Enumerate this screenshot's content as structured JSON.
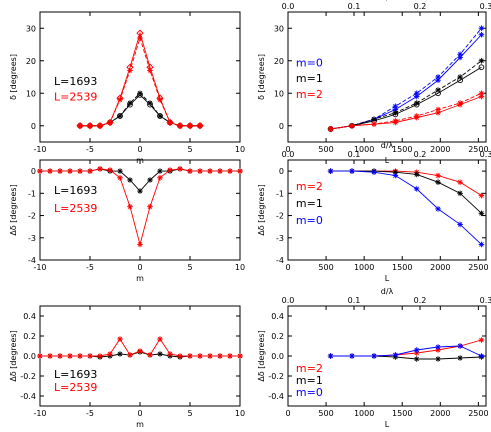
{
  "colors": {
    "black": "#000000",
    "red": "#ff0000",
    "blue": "#0000ff"
  },
  "chart_data": [
    {
      "type": "line",
      "panel": "top-left",
      "xlabel": "m",
      "ylabel": "δ [degrees]",
      "xlim": [
        -10,
        10
      ],
      "ylim": [
        -5,
        35
      ],
      "xticks": [
        -10,
        -5,
        0,
        5,
        10
      ],
      "yticks": [
        0,
        10,
        20,
        30
      ],
      "x": [
        -6,
        -5,
        -4,
        -3,
        -2,
        -1,
        0,
        1,
        2,
        3,
        4,
        5,
        6
      ],
      "series": [
        {
          "name": "L=1693",
          "color": "#000000",
          "marker": "star",
          "dashed": true,
          "values": [
            0,
            0,
            0,
            1,
            3,
            7,
            10,
            7,
            3,
            1,
            0,
            0,
            0
          ]
        },
        {
          "name": "L=1693",
          "color": "#000000",
          "marker": "circle",
          "dashed": false,
          "values": [
            0,
            0,
            0,
            1,
            3,
            6.5,
            9.5,
            6.5,
            3,
            1,
            0,
            0,
            0
          ]
        },
        {
          "name": "L=2539",
          "color": "#ff0000",
          "marker": "star",
          "dashed": true,
          "values": [
            0,
            0,
            0,
            1,
            8,
            17,
            27,
            17,
            8,
            1,
            0,
            0,
            0
          ]
        },
        {
          "name": "L=2539",
          "color": "#ff0000",
          "marker": "diamond",
          "dashed": false,
          "values": [
            0,
            0,
            0,
            1,
            8.5,
            18,
            28.5,
            18,
            8.5,
            1,
            0,
            0,
            0
          ]
        }
      ],
      "annotations": [
        {
          "text": "L=1693",
          "color": "#000000"
        },
        {
          "text": "L=2539",
          "color": "#ff0000"
        }
      ]
    },
    {
      "type": "line",
      "panel": "top-right",
      "xlabel": "L",
      "x2label": "d/λ",
      "ylabel": "δ [degrees]",
      "xlim": [
        0,
        2600
      ],
      "ylim": [
        -5,
        35
      ],
      "xticks": [
        0,
        500,
        1000,
        1500,
        2000,
        2500
      ],
      "x2ticks": [
        "0.0",
        "0.1",
        "0.2",
        "0.3"
      ],
      "yticks": [
        0,
        10,
        20,
        30
      ],
      "x": [
        560,
        840,
        1130,
        1410,
        1690,
        1970,
        2260,
        2540
      ],
      "series": [
        {
          "name": "m=0",
          "color": "#0000ff",
          "marker": "star",
          "dashed": true,
          "values": [
            -1,
            0,
            2,
            6,
            10,
            15,
            22,
            30
          ]
        },
        {
          "name": "m=0",
          "color": "#0000ff",
          "marker": "star",
          "dashed": false,
          "values": [
            -1,
            0,
            2,
            5,
            9,
            14,
            21,
            28
          ]
        },
        {
          "name": "m=1",
          "color": "#000000",
          "marker": "star",
          "dashed": true,
          "values": [
            -1,
            0,
            2,
            4,
            7,
            11,
            15,
            20
          ]
        },
        {
          "name": "m=1",
          "color": "#000000",
          "marker": "circle",
          "dashed": false,
          "values": [
            -1,
            0,
            1.5,
            3.5,
            6.5,
            10,
            14,
            18
          ]
        },
        {
          "name": "m=2",
          "color": "#ff0000",
          "marker": "star",
          "dashed": true,
          "values": [
            -1,
            0,
            0.5,
            1.5,
            3,
            5,
            7,
            10
          ]
        },
        {
          "name": "m=2",
          "color": "#ff0000",
          "marker": "star",
          "dashed": false,
          "values": [
            -1,
            0,
            0.5,
            1,
            2.5,
            4,
            6.5,
            9
          ]
        }
      ],
      "annotations": [
        {
          "text": "m=0",
          "color": "#0000ff"
        },
        {
          "text": "m=1",
          "color": "#000000"
        },
        {
          "text": "m=2",
          "color": "#ff0000"
        }
      ]
    },
    {
      "type": "line",
      "panel": "middle-left",
      "xlabel": "m",
      "ylabel": "Δδ [degrees]",
      "xlim": [
        -10,
        10
      ],
      "ylim": [
        -4,
        0.5
      ],
      "xticks": [
        -10,
        -5,
        0,
        5,
        10
      ],
      "yticks": [
        -4,
        -3,
        -2,
        -1,
        0
      ],
      "x": [
        -10,
        -9,
        -8,
        -7,
        -6,
        -5,
        -4,
        -3,
        -2,
        -1,
        0,
        1,
        2,
        3,
        4,
        5,
        6,
        7,
        8,
        9,
        10
      ],
      "series": [
        {
          "name": "L=1693",
          "color": "#000000",
          "marker": "star",
          "dashed": false,
          "values": [
            0,
            0,
            0,
            0,
            0,
            0,
            0.1,
            0,
            0,
            -0.4,
            -0.9,
            -0.4,
            0,
            0,
            0.1,
            0,
            0,
            0,
            0,
            0,
            0
          ]
        },
        {
          "name": "L=2539",
          "color": "#ff0000",
          "marker": "star",
          "dashed": false,
          "values": [
            0,
            0,
            0,
            0,
            0,
            0,
            0.1,
            0.05,
            -0.3,
            -1.6,
            -3.3,
            -1.6,
            -0.3,
            0.05,
            0.1,
            0,
            0,
            0,
            0,
            0,
            0
          ]
        }
      ],
      "annotations": [
        {
          "text": "L=1693",
          "color": "#000000"
        },
        {
          "text": "L=2539",
          "color": "#ff0000"
        }
      ]
    },
    {
      "type": "line",
      "panel": "middle-right",
      "xlabel": "L",
      "x2label": "d/λ",
      "ylabel": "Δδ [degrees]",
      "xlim": [
        0,
        2600
      ],
      "ylim": [
        -4,
        0.5
      ],
      "xticks": [
        0,
        500,
        1000,
        1500,
        2000,
        2500
      ],
      "x2ticks": [
        "0.0",
        "0.1",
        "0.2",
        "0.3"
      ],
      "yticks": [
        -4,
        -3,
        -2,
        -1,
        0
      ],
      "x": [
        560,
        840,
        1130,
        1410,
        1690,
        1970,
        2260,
        2540
      ],
      "series": [
        {
          "name": "m=2",
          "color": "#ff0000",
          "marker": "star",
          "dashed": false,
          "values": [
            0,
            0,
            0,
            0,
            -0.05,
            -0.2,
            -0.5,
            -1.1
          ]
        },
        {
          "name": "m=1",
          "color": "#000000",
          "marker": "star",
          "dashed": false,
          "values": [
            0,
            0,
            0,
            -0.05,
            -0.15,
            -0.5,
            -1.0,
            -1.9
          ]
        },
        {
          "name": "m=0",
          "color": "#0000ff",
          "marker": "star",
          "dashed": false,
          "values": [
            0,
            0,
            -0.05,
            -0.2,
            -0.8,
            -1.7,
            -2.4,
            -3.3
          ]
        }
      ],
      "annotations": [
        {
          "text": "m=2",
          "color": "#ff0000"
        },
        {
          "text": "m=1",
          "color": "#000000"
        },
        {
          "text": "m=0",
          "color": "#0000ff"
        }
      ]
    },
    {
      "type": "line",
      "panel": "bottom-left",
      "xlabel": "m",
      "ylabel": "Δδ [degrees]",
      "xlim": [
        -10,
        10
      ],
      "ylim": [
        -0.5,
        0.5
      ],
      "xticks": [
        -10,
        -5,
        0,
        5,
        10
      ],
      "yticks": [
        "-0.4",
        "-0.2",
        "0.0",
        "0.2",
        "0.4"
      ],
      "x": [
        -10,
        -9,
        -8,
        -7,
        -6,
        -5,
        -4,
        -3,
        -2,
        -1,
        0,
        1,
        2,
        3,
        4,
        5,
        6,
        7,
        8,
        9,
        10
      ],
      "series": [
        {
          "name": "L=1693",
          "color": "#000000",
          "marker": "star",
          "dashed": false,
          "values": [
            0,
            0,
            0,
            0,
            0,
            0,
            -0.01,
            0,
            0.02,
            0.01,
            0.04,
            0.01,
            0.02,
            0,
            -0.01,
            0,
            0,
            0,
            0,
            0,
            0
          ]
        },
        {
          "name": "L=2539",
          "color": "#ff0000",
          "marker": "star",
          "dashed": false,
          "values": [
            0,
            0,
            0,
            0,
            0,
            0,
            0,
            0.02,
            0.17,
            0.01,
            0.05,
            0.01,
            0.17,
            0.02,
            0,
            0,
            0,
            0,
            0,
            0,
            0
          ]
        }
      ],
      "annotations": [
        {
          "text": "L=1693",
          "color": "#000000"
        },
        {
          "text": "L=2539",
          "color": "#ff0000"
        }
      ]
    },
    {
      "type": "line",
      "panel": "bottom-right",
      "xlabel": "L",
      "x2label": "d/λ",
      "ylabel": "Δδ [degrees]",
      "xlim": [
        0,
        2600
      ],
      "ylim": [
        -0.5,
        0.5
      ],
      "xticks": [
        0,
        500,
        1000,
        1500,
        2000,
        2500
      ],
      "x2ticks": [
        "0.0",
        "0.1",
        "0.2",
        "0.3"
      ],
      "yticks": [
        "-0.4",
        "-0.2",
        "0.0",
        "0.2",
        "0.4"
      ],
      "x": [
        560,
        840,
        1130,
        1410,
        1690,
        1970,
        2260,
        2540
      ],
      "series": [
        {
          "name": "m=2",
          "color": "#ff0000",
          "marker": "star",
          "dashed": false,
          "values": [
            0,
            0,
            0,
            0.01,
            0.03,
            0.06,
            0.1,
            0.16
          ]
        },
        {
          "name": "m=1",
          "color": "#000000",
          "marker": "star",
          "dashed": false,
          "values": [
            0,
            0,
            0,
            -0.01,
            -0.03,
            -0.03,
            -0.02,
            -0.01
          ]
        },
        {
          "name": "m=0",
          "color": "#0000ff",
          "marker": "star",
          "dashed": false,
          "values": [
            0,
            0,
            0,
            0.01,
            0.06,
            0.09,
            0.1,
            0.0
          ]
        }
      ],
      "annotations": [
        {
          "text": "m=2",
          "color": "#ff0000"
        },
        {
          "text": "m=1",
          "color": "#000000"
        },
        {
          "text": "m=0",
          "color": "#0000ff"
        }
      ]
    }
  ]
}
